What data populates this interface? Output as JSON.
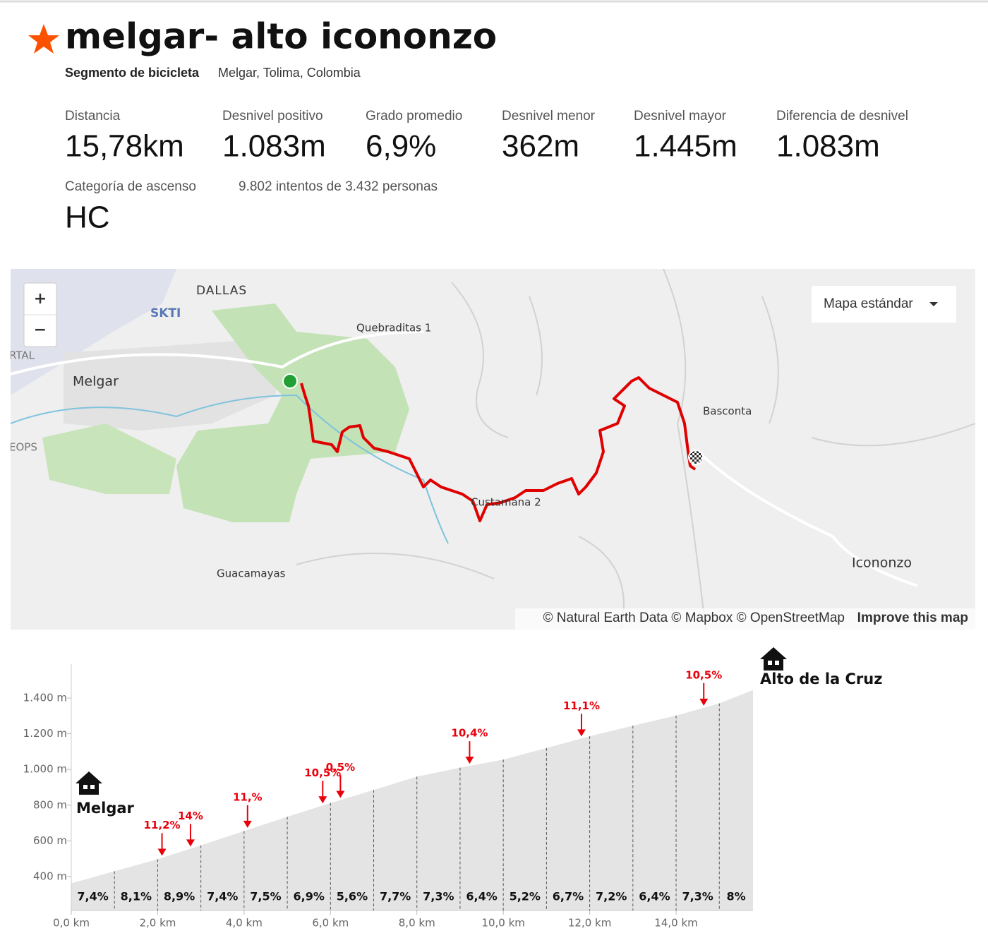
{
  "header": {
    "title": "melgar- alto icononzo",
    "type_label": "Segmento de bicicleta",
    "location": "Melgar, Tolima, Colombia"
  },
  "stats": [
    {
      "label": "Distancia",
      "value": "15,78km"
    },
    {
      "label": "Desnivel positivo",
      "value": "1.083m"
    },
    {
      "label": "Grado promedio",
      "value": "6,9%"
    },
    {
      "label": "Desnivel menor",
      "value": "362m"
    },
    {
      "label": "Desnivel mayor",
      "value": "1.445m"
    },
    {
      "label": "Diferencia de desnivel",
      "value": "1.083m"
    },
    {
      "label": "Categoría de ascenso",
      "value": "HC"
    }
  ],
  "attempts": "9.802 intentos de 3.432 personas",
  "map": {
    "zoom_in": "+",
    "zoom_out": "−",
    "style_button": "Mapa estándar",
    "places": [
      "DALLAS",
      "SKTI",
      "Quebraditas 1",
      "Melgar",
      "Basconta",
      "Custamana 2",
      "Icononzo",
      "Guacamayas",
      "RTAL",
      "EOPS"
    ],
    "attribution": "© Natural Earth Data © Mapbox © OpenStreetMap",
    "improve": "Improve this map"
  },
  "chart_data": {
    "type": "area",
    "color": "#e4e4e4",
    "x": [
      0,
      1,
      2,
      3,
      4,
      5,
      6,
      7,
      8,
      9,
      10,
      11,
      12,
      13,
      14,
      15,
      15.78
    ],
    "values": [
      362,
      430,
      497,
      575,
      655,
      735,
      812,
      885,
      960,
      1010,
      1055,
      1120,
      1186,
      1245,
      1302,
      1370,
      1445
    ],
    "xlim": [
      0,
      15.78
    ],
    "ylim": [
      210,
      1590
    ],
    "xticks": [
      {
        "value": 0,
        "label": "0,0 km"
      },
      {
        "value": 2,
        "label": "2,0 km"
      },
      {
        "value": 4,
        "label": "4,0 km"
      },
      {
        "value": 6,
        "label": "6,0 km"
      },
      {
        "value": 8,
        "label": "8,0 km"
      },
      {
        "value": 10,
        "label": "10,0 km"
      },
      {
        "value": 12,
        "label": "12,0 km"
      },
      {
        "value": 14,
        "label": "14,0 km"
      }
    ],
    "yticks": [
      {
        "value": 400,
        "label": "400 m"
      },
      {
        "value": 600,
        "label": "600 m"
      },
      {
        "value": 800,
        "label": "800 m"
      },
      {
        "value": 1000,
        "label": "1.000 m"
      },
      {
        "value": 1200,
        "label": "1.200 m"
      },
      {
        "value": 1400,
        "label": "1.400 m"
      }
    ],
    "grades": [
      7.4,
      8.1,
      8.9,
      7.4,
      7.5,
      6.9,
      5.6,
      7.7,
      7.3,
      6.4,
      5.2,
      6.7,
      7.2,
      6.4,
      7.3,
      8
    ],
    "grade_labels": [
      "7,4%",
      "8,1%",
      "8,9%",
      "7,4%",
      "7,5%",
      "6,9%",
      "5,6%",
      "7,7%",
      "7,3%",
      "6,4%",
      "5,2%",
      "6,7%",
      "7,2%",
      "6,4%",
      "7,3%",
      "8%"
    ],
    "annotation_color": "#e8000b",
    "annotations": [
      {
        "x": 2.1,
        "label": "11,2%"
      },
      {
        "x": 2.76,
        "label": "14%"
      },
      {
        "x": 4.08,
        "label": "11,%"
      },
      {
        "x": 5.82,
        "label": "10,5%"
      },
      {
        "x": 6.23,
        "label": "0,5%"
      },
      {
        "x": 9.22,
        "label": "10,4%"
      },
      {
        "x": 11.81,
        "label": "11,1%"
      },
      {
        "x": 14.64,
        "label": "10,5%"
      }
    ],
    "start_label": "Melgar",
    "end_label": "Alto de la Cruz"
  }
}
